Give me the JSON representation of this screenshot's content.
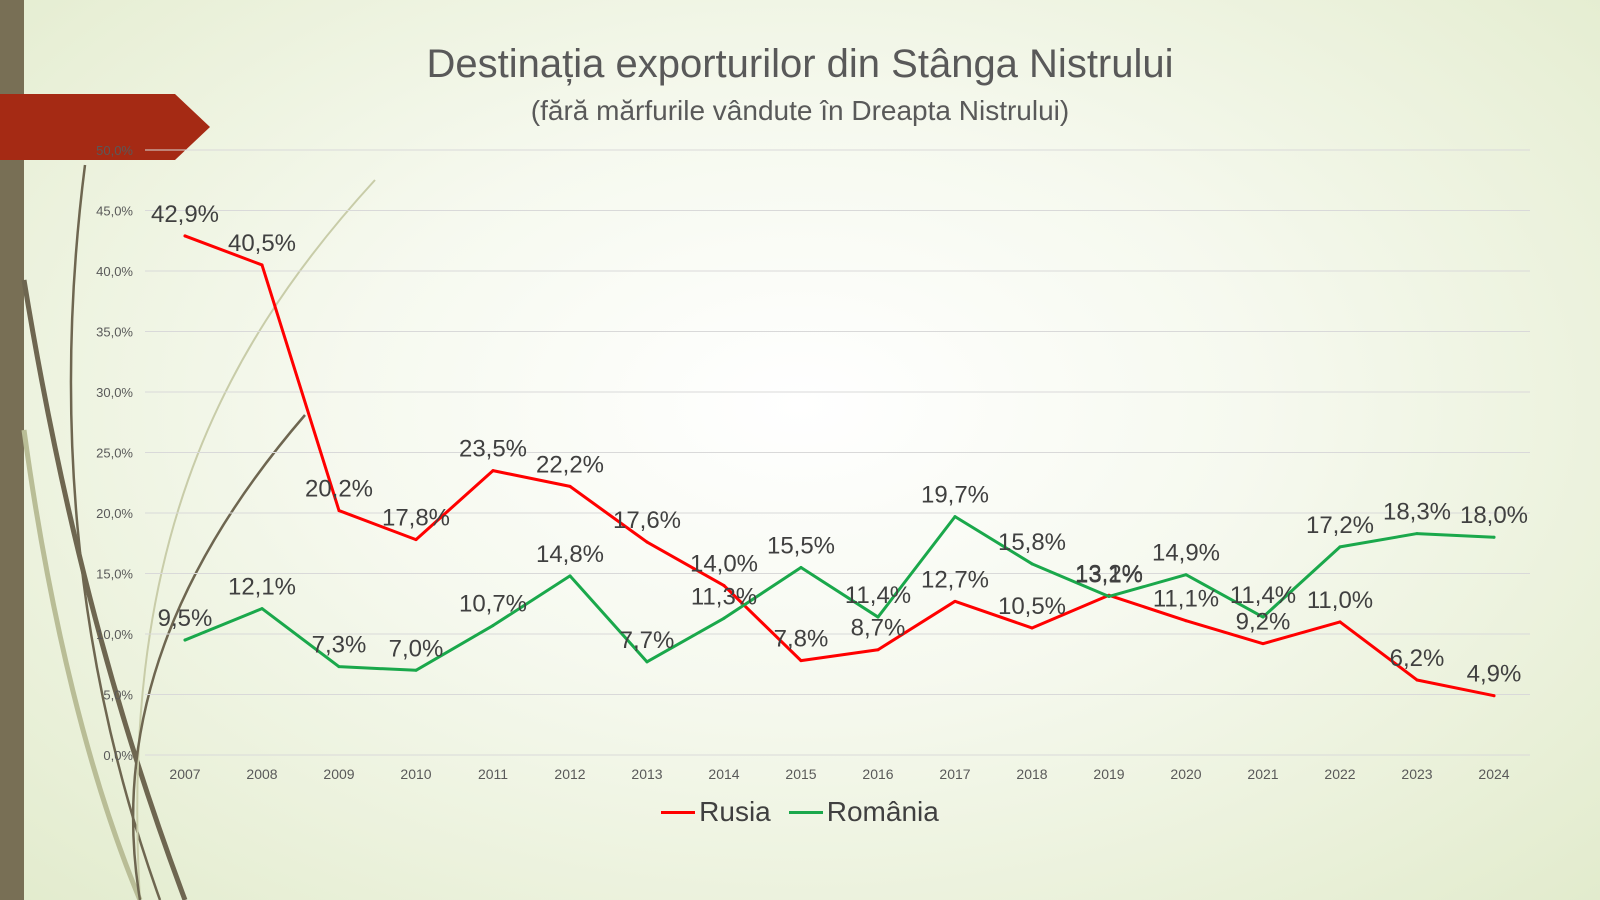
{
  "slide": {
    "title": "Destinația exporturilor din Stânga Nistrului",
    "subtitle": "(fără mărfurile vândute în Dreapta Nistrului)"
  },
  "colors": {
    "rusia": "#ff0000",
    "romania": "#1aa84b",
    "grid": "#d9d9d9",
    "text": "#595959",
    "label": "#404040",
    "accent_bar": "#786f55",
    "accent_tab": "#a52a14"
  },
  "chart_data": {
    "type": "line",
    "title": "Destinația exporturilor din Stânga Nistrului",
    "subtitle": "(fără mărfurile vândute în Dreapta Nistrului)",
    "xlabel": "",
    "ylabel": "",
    "ylim": [
      0,
      50
    ],
    "y_ticks": [
      "0,0%",
      "5,0%",
      "10,0%",
      "15,0%",
      "20,0%",
      "25,0%",
      "30,0%",
      "35,0%",
      "40,0%",
      "45,0%",
      "50,0%"
    ],
    "categories": [
      "2007",
      "2008",
      "2009",
      "2010",
      "2011",
      "2012",
      "2013",
      "2014",
      "2015",
      "2016",
      "2017",
      "2018",
      "2019",
      "2020",
      "2021",
      "2022",
      "2023",
      "2024"
    ],
    "grid": true,
    "legend_position": "bottom",
    "series": [
      {
        "name": "Rusia",
        "values": [
          42.9,
          40.5,
          20.2,
          17.8,
          23.5,
          22.2,
          17.6,
          14.0,
          7.8,
          8.7,
          12.7,
          10.5,
          13.2,
          11.1,
          9.2,
          11.0,
          6.2,
          4.9
        ],
        "labels": [
          "42,9%",
          "40,5%",
          "20,2%",
          "17,8%",
          "23,5%",
          "22,2%",
          "17,6%",
          "14,0%",
          "7,8%",
          "8,7%",
          "12,7%",
          "10,5%",
          "13,2%",
          "11,1%",
          "9,2%",
          "11,0%",
          "6,2%",
          "4,9%"
        ]
      },
      {
        "name": "România",
        "values": [
          9.5,
          12.1,
          7.3,
          7.0,
          10.7,
          14.8,
          7.7,
          11.3,
          15.5,
          11.4,
          19.7,
          15.8,
          13.1,
          14.9,
          11.4,
          17.2,
          18.3,
          18.0
        ],
        "labels": [
          "9,5%",
          "12,1%",
          "7,3%",
          "7,0%",
          "10,7%",
          "14,8%",
          "7,7%",
          "11,3%",
          "15,5%",
          "11,4%",
          "19,7%",
          "15,8%",
          "13,1%",
          "14,9%",
          "11,4%",
          "17,2%",
          "18,3%",
          "18,0%"
        ]
      }
    ]
  }
}
